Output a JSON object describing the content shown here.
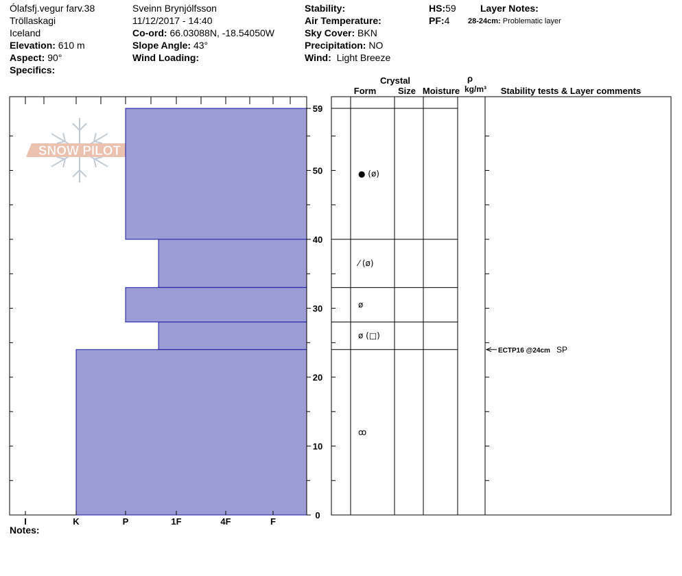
{
  "header": {
    "location_name": "Ólafsfj.vegur farv.38",
    "region": "Tröllaskagi",
    "country": "Iceland",
    "elevation_label": "Elevation:",
    "elevation_value": "610 m",
    "aspect_label": "Aspect:",
    "aspect_value": "90°",
    "specifics_label": "Specifics:",
    "observer": "Sveinn Brynjólfsson",
    "datetime": "11/12/2017 - 14:40",
    "coord_label": "Co-ord:",
    "coord_value": "66.03088N, -18.54050W",
    "slope_label": "Slope Angle:",
    "slope_value": "43°",
    "wind_loading_label": "Wind Loading:",
    "stability_label": "Stability:",
    "air_temp_label": "Air Temperature:",
    "sky_label": "Sky Cover:",
    "sky_value": "BKN",
    "precip_label": "Precipitation:",
    "precip_value": "NO",
    "wind_label": "Wind:",
    "wind_value": "Light Breeze",
    "hs_label": "HS:",
    "hs_value": "59",
    "pf_label": "PF:",
    "pf_value": "4",
    "layer_notes_label": "Layer Notes:",
    "layer_note_depth": "28-24cm:",
    "layer_note_text": "Problematic layer"
  },
  "logo_text": "SNOW PILOT",
  "notes_label": "Notes:",
  "columns": {
    "crystal": "Crystal",
    "form": "Form",
    "size": "Size",
    "moisture": "Moisture",
    "rho": "ρ",
    "density_unit": "kg/m³",
    "stability": "Stability tests & Layer comments"
  },
  "colors": {
    "hardness_fill": "#9b9bd6",
    "hardness_stroke": "#1a1aa0"
  },
  "chart_data": {
    "type": "bar",
    "orientation": "horizontal",
    "x_axis_tick_labels": [
      "I",
      "K",
      "P",
      "1F",
      "4F",
      "F"
    ],
    "y_axis_ticks": [
      0,
      10,
      20,
      30,
      40,
      50,
      59
    ],
    "ylim": [
      0,
      59
    ],
    "hardness_scale": [
      "F",
      "4F",
      "1F",
      "P",
      "K",
      "I"
    ],
    "layers": [
      {
        "top": 59,
        "bottom": 40,
        "hardness": "P",
        "grain_forms": [
          "round-grains",
          "melt-forms"
        ],
        "form_text": "● (ø)"
      },
      {
        "top": 40,
        "bottom": 33,
        "hardness": "1F-",
        "grain_forms": [
          "decomposing-fragments",
          "melt-forms"
        ],
        "form_text": "⁄ (ø)"
      },
      {
        "top": 33,
        "bottom": 28,
        "hardness": "P",
        "grain_forms": [
          "melt-forms"
        ],
        "form_text": "ø"
      },
      {
        "top": 28,
        "bottom": 24,
        "hardness": "1F-",
        "grain_forms": [
          "melt-forms",
          "faceted-crystals"
        ],
        "form_text": "ø (□)"
      },
      {
        "top": 24,
        "bottom": 0,
        "hardness": "K",
        "grain_forms": [
          "melt-freeze-clusters"
        ],
        "form_text": "ꝏ"
      }
    ],
    "hardness_values": {
      "F": 1,
      "4F": 2,
      "1F": 3,
      "1F-": 3.35,
      "P": 4,
      "K": 5,
      "I": 6
    },
    "stability_tests": [
      {
        "depth": 24,
        "text": "ECTP16 @24cm",
        "suffix": "SP"
      }
    ]
  }
}
